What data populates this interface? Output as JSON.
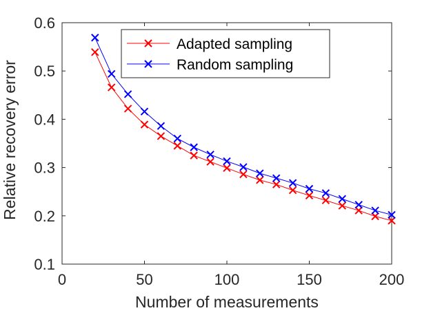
{
  "chart_data": {
    "type": "line",
    "xlabel": "Number of measurements",
    "ylabel": "Relative recovery error",
    "xlim": [
      0,
      200
    ],
    "ylim": [
      0.1,
      0.6
    ],
    "xticks": [
      "0",
      "50",
      "100",
      "150",
      "200"
    ],
    "yticks": [
      "0.1",
      "0.2",
      "0.3",
      "0.4",
      "0.5",
      "0.6"
    ],
    "grid": false,
    "legend_position": "top-right",
    "x": [
      20,
      30,
      40,
      50,
      60,
      70,
      80,
      90,
      100,
      110,
      120,
      130,
      140,
      150,
      160,
      170,
      180,
      190,
      200
    ],
    "series": [
      {
        "name": "Adapted sampling",
        "color": "#ff0000",
        "marker": "x",
        "values": [
          0.539,
          0.466,
          0.422,
          0.389,
          0.365,
          0.345,
          0.325,
          0.312,
          0.299,
          0.286,
          0.274,
          0.265,
          0.253,
          0.242,
          0.232,
          0.221,
          0.211,
          0.199,
          0.19
        ]
      },
      {
        "name": "Random sampling",
        "color": "#0000ff",
        "marker": "x",
        "values": [
          0.569,
          0.494,
          0.452,
          0.416,
          0.386,
          0.36,
          0.342,
          0.327,
          0.313,
          0.301,
          0.288,
          0.278,
          0.268,
          0.256,
          0.247,
          0.235,
          0.223,
          0.211,
          0.202
        ]
      }
    ]
  }
}
